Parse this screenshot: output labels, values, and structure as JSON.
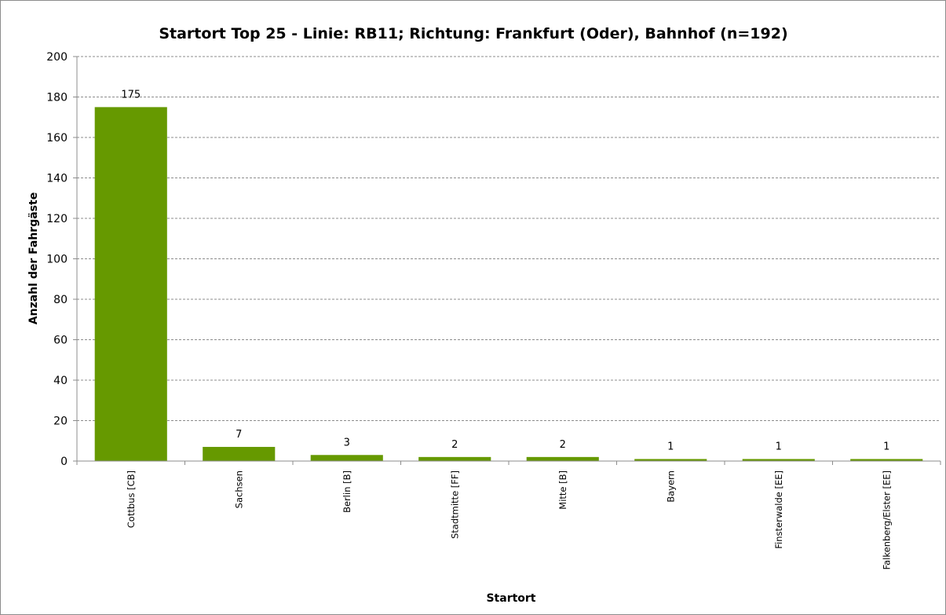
{
  "chart_data": {
    "type": "bar",
    "title": "Startort Top 25 - Linie: RB11; Richtung: Frankfurt (Oder), Bahnhof (n=192)",
    "xlabel": "Startort",
    "ylabel": "Anzahl der Fahrgäste",
    "categories": [
      "Cottbus [CB]",
      "Sachsen",
      "Berlin [B]",
      "Stadtmitte [FF]",
      "Mitte [B]",
      "Bayern",
      "Finsterwalde [EE]",
      "Falkenberg/Elster [EE]"
    ],
    "values": [
      175,
      7,
      3,
      2,
      2,
      1,
      1,
      1
    ],
    "ylim": [
      0,
      200
    ],
    "yticks": [
      0,
      20,
      40,
      60,
      80,
      100,
      120,
      140,
      160,
      180,
      200
    ],
    "grid": true,
    "legend": "none",
    "bar_color": "#669900",
    "gridline_color": "#8c8c8c"
  }
}
